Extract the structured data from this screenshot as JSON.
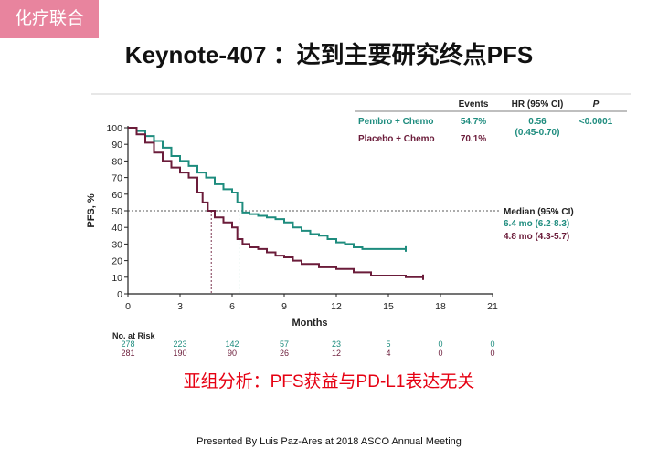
{
  "tag": "化疗联合",
  "title": "Keynote-407 ：达到主要研究终点PFS",
  "subgroup_note": "亚组分析：PFS获益与PD-L1表达无关",
  "footer": "Presented By Luis Paz-Ares at 2018 ASCO Annual Meeting",
  "legend": {
    "headers": {
      "events": "Events",
      "hr": "HR (95% CI)",
      "p": "P"
    },
    "rows": [
      {
        "name": "Pembro + Chemo",
        "events": "54.7%",
        "hr": "0.56",
        "hr_ci": "(0.45-0.70)",
        "p": "<0.0001",
        "color": "#1e8c7e"
      },
      {
        "name": "Placebo + Chemo",
        "events": "70.1%",
        "color": "#6b1c3a"
      }
    ]
  },
  "median": {
    "label": "Median (95% CI)",
    "pembro": "6.4 mo (6.2-8.3)",
    "placebo": "4.8 mo (4.3-5.7)"
  },
  "chart_data": {
    "type": "line",
    "ylabel": "PFS, %",
    "xlabel": "Months",
    "xlim": [
      0,
      21
    ],
    "ylim": [
      0,
      100
    ],
    "xticks": [
      0,
      3,
      6,
      9,
      12,
      15,
      18,
      21
    ],
    "yticks": [
      0,
      10,
      20,
      30,
      40,
      50,
      60,
      70,
      80,
      90,
      100
    ],
    "median_line": 50,
    "median_times": [
      6.4,
      4.8
    ],
    "series": [
      {
        "name": "Pembro + Chemo",
        "color": "#1e8c7e",
        "x": [
          0,
          0.5,
          1.0,
          1.5,
          2.0,
          2.5,
          3.0,
          3.5,
          4.0,
          4.5,
          5.0,
          5.5,
          6.0,
          6.3,
          6.6,
          7.0,
          7.5,
          8.0,
          8.5,
          9.0,
          9.5,
          10.0,
          10.5,
          11.0,
          11.5,
          12.0,
          12.5,
          13.0,
          13.5,
          14.0,
          15.0,
          16.0
        ],
        "y": [
          100,
          98,
          95,
          92,
          88,
          83,
          80,
          77,
          73,
          70,
          66,
          63,
          61,
          55,
          49,
          48,
          47,
          46,
          45,
          43,
          40,
          38,
          36,
          35,
          33,
          31,
          30,
          28,
          27,
          27,
          27,
          27
        ]
      },
      {
        "name": "Placebo + Chemo",
        "color": "#6b1c3a",
        "x": [
          0,
          0.5,
          1.0,
          1.5,
          2.0,
          2.5,
          3.0,
          3.5,
          4.0,
          4.3,
          4.6,
          5.0,
          5.5,
          6.0,
          6.3,
          6.6,
          7.0,
          7.5,
          8.0,
          8.5,
          9.0,
          9.5,
          10.0,
          11.0,
          12.0,
          13.0,
          14.0,
          15.0,
          16.0,
          17.0
        ],
        "y": [
          100,
          96,
          91,
          85,
          80,
          76,
          73,
          70,
          61,
          55,
          50,
          46,
          43,
          40,
          33,
          30,
          28,
          27,
          25,
          23,
          22,
          20,
          18,
          16,
          15,
          13,
          11,
          11,
          10,
          10
        ]
      }
    ]
  },
  "risk_table": {
    "title": "No. at Risk",
    "rows": [
      {
        "name": "Pembro + Chemo",
        "color": "#1e8c7e",
        "values": [
          "278",
          "223",
          "142",
          "57",
          "23",
          "5",
          "0",
          "0"
        ]
      },
      {
        "name": "Placebo + Chemo",
        "color": "#6b1c3a",
        "values": [
          "281",
          "190",
          "90",
          "26",
          "12",
          "4",
          "0",
          "0"
        ]
      }
    ]
  }
}
